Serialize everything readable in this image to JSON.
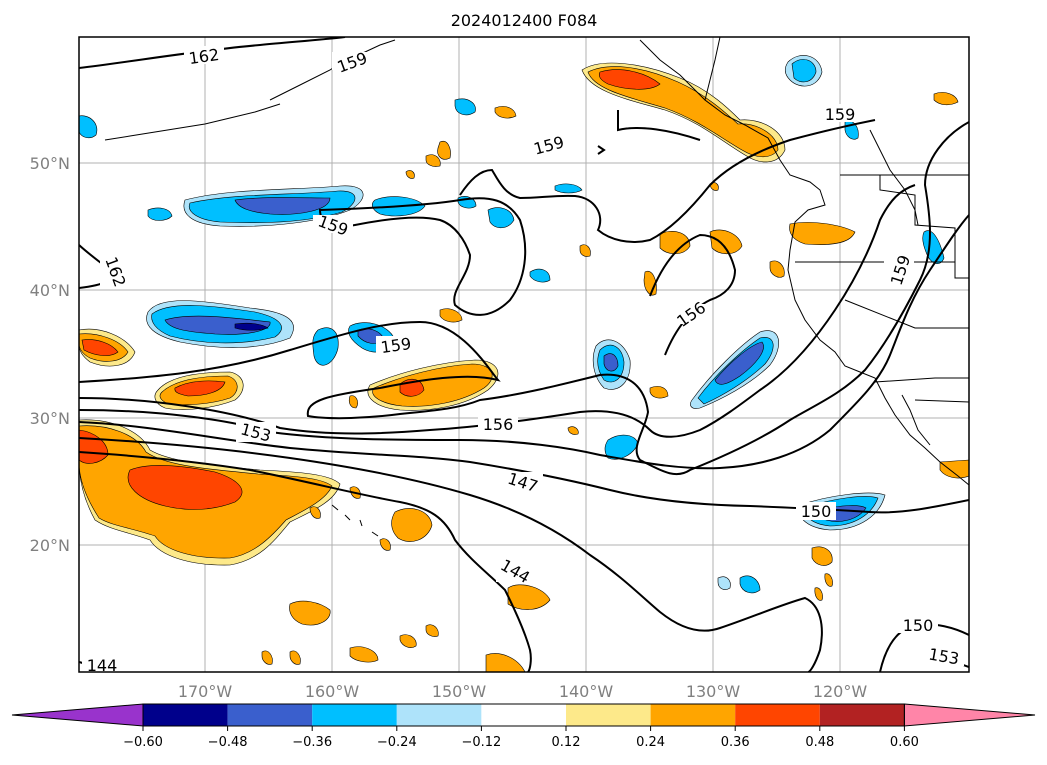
{
  "title": "2024012400 F084",
  "lat_labels": [
    "50°N",
    "40°N",
    "30°N",
    "20°N"
  ],
  "lon_labels": [
    "170°W",
    "160°W",
    "150°W",
    "140°W",
    "130°W",
    "120°W"
  ],
  "contour_labels": [
    "162",
    "159",
    "159",
    "159",
    "159",
    "162",
    "159",
    "159",
    "156",
    "156",
    "153",
    "147",
    "150",
    "144",
    "150",
    "153",
    "144"
  ],
  "colorbar": {
    "ticks": [
      "−0.60",
      "−0.48",
      "−0.36",
      "−0.24",
      "−0.12",
      "0.12",
      "0.24",
      "0.36",
      "0.48",
      "0.60"
    ],
    "colors": [
      "#9933cc",
      "#00008b",
      "#3a5fcd",
      "#00bfff",
      "#aee3fa",
      "#ffffff",
      "#fde98a",
      "#ffa500",
      "#ff4500",
      "#b22222",
      "#ff85a8"
    ]
  },
  "colors": {
    "strong_neg": "#3a5fcd",
    "neg": "#00bfff",
    "weak_neg": "#aee3fa",
    "weak_pos": "#fde98a",
    "pos": "#ffa500",
    "strong_pos": "#ff4500",
    "contour": "#000000",
    "grid": "#b0b0b0"
  }
}
